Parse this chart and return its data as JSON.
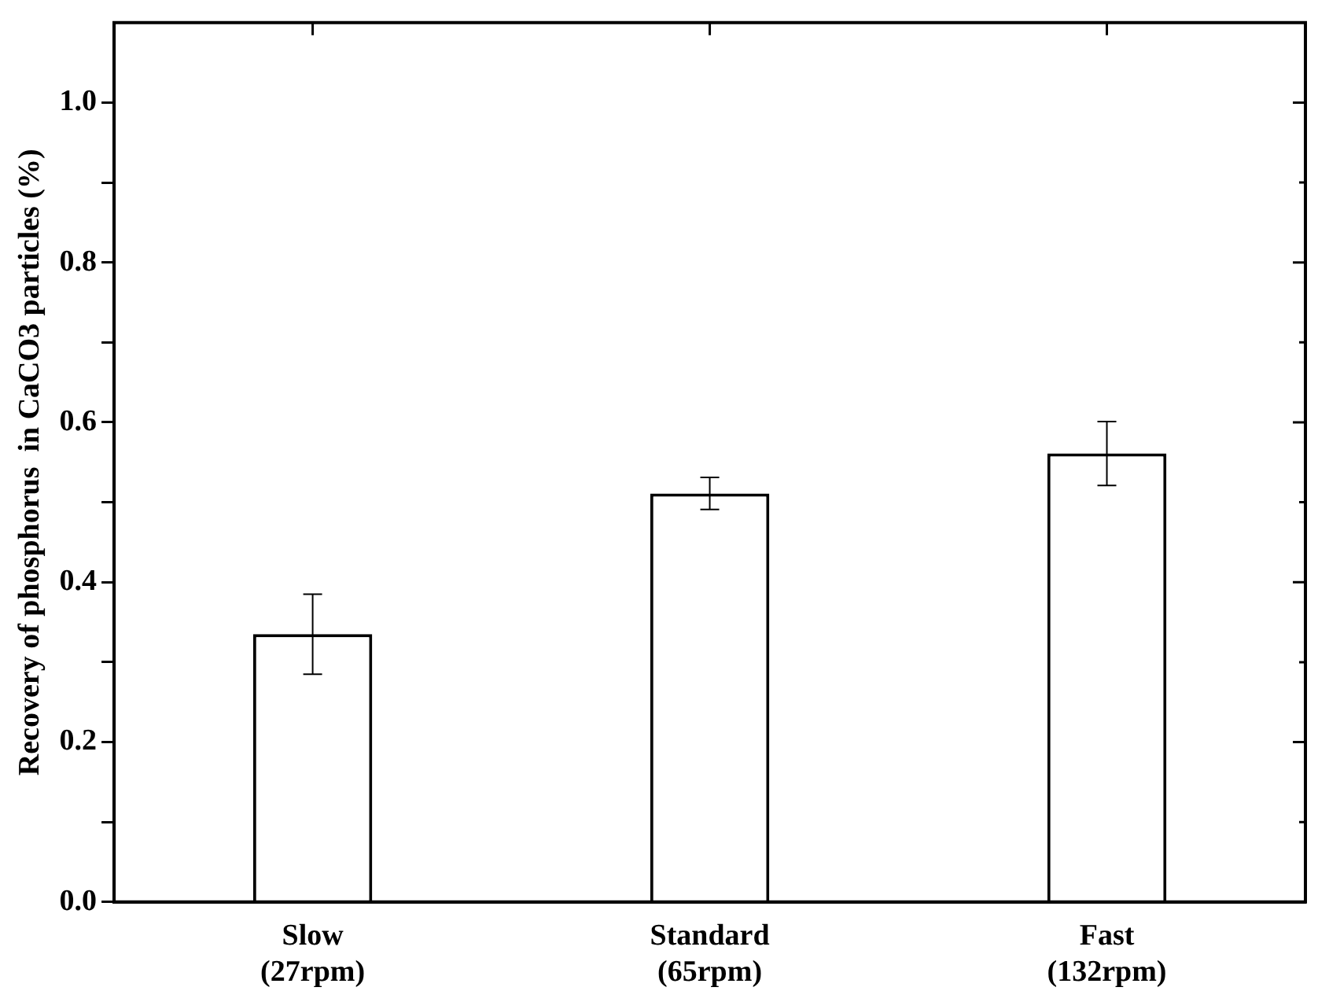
{
  "chart_data": {
    "type": "bar",
    "ylabel": "Recovery of phosphorus  in CaCO3 particles (%)",
    "categories": [
      "Slow\n(27rpm)",
      "Standard\n(65rpm)",
      "Fast\n(132rpm)"
    ],
    "values": [
      0.335,
      0.511,
      0.561
    ],
    "errors": [
      0.05,
      0.02,
      0.04
    ],
    "color": "#ffffff",
    "ylim": [
      0,
      1.1
    ],
    "yticks": [
      {
        "value": 0.0,
        "label": "0.0"
      },
      {
        "value": 0.1,
        "label": null
      },
      {
        "value": 0.2,
        "label": "0.2"
      },
      {
        "value": 0.3,
        "label": null
      },
      {
        "value": 0.4,
        "label": "0.4"
      },
      {
        "value": 0.5,
        "label": null
      },
      {
        "value": 0.6,
        "label": "0.6"
      },
      {
        "value": 0.7,
        "label": null
      },
      {
        "value": 0.8,
        "label": "0.8"
      },
      {
        "value": 0.9,
        "label": null
      },
      {
        "value": 1.0,
        "label": "1.0"
      }
    ],
    "grid": false,
    "legend": false
  }
}
